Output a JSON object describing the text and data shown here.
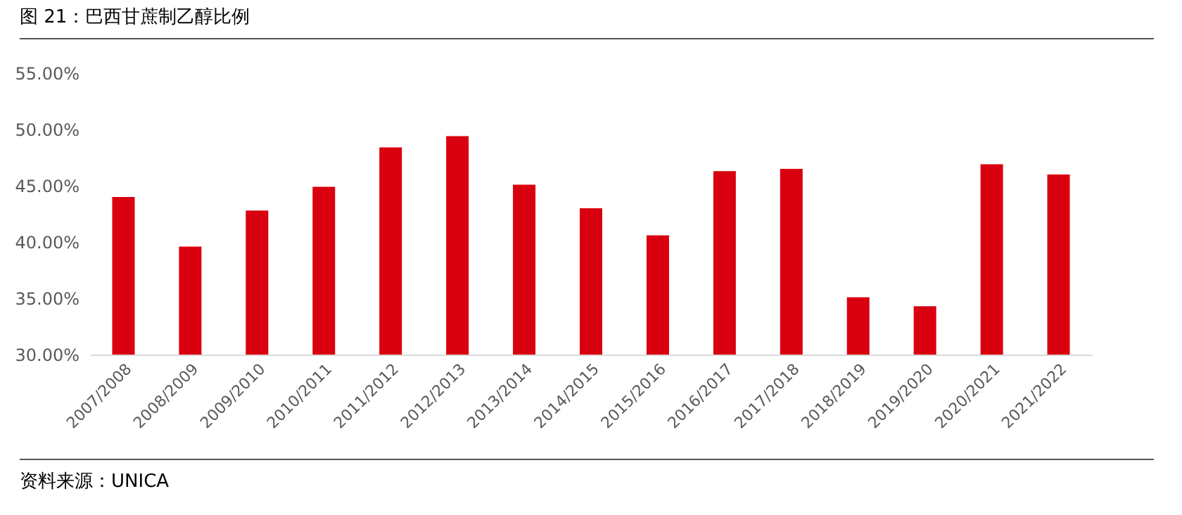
{
  "chart_data": {
    "type": "bar",
    "title": "图 21：巴西甘蔗制乙醇比例",
    "categories": [
      "2007/2008",
      "2008/2009",
      "2009/2010",
      "2010/2011",
      "2011/2012",
      "2012/2013",
      "2013/2014",
      "2014/2015",
      "2015/2016",
      "2016/2017",
      "2017/2018",
      "2018/2019",
      "2019/2020",
      "2020/2021",
      "2021/2022"
    ],
    "values": [
      44.0,
      39.6,
      42.8,
      44.9,
      48.4,
      49.4,
      45.1,
      43.0,
      40.6,
      46.3,
      46.5,
      35.1,
      34.3,
      46.9,
      46.0
    ],
    "color": "#d9000f",
    "ylim": [
      30,
      55
    ],
    "yticks": [
      {
        "value": 30,
        "label": "30.00%"
      },
      {
        "value": 35,
        "label": "35.00%"
      },
      {
        "value": 40,
        "label": "40.00%"
      },
      {
        "value": 45,
        "label": "45.00%"
      },
      {
        "value": 50,
        "label": "50.00%"
      },
      {
        "value": 55,
        "label": "55.00%"
      }
    ],
    "grid": false,
    "annotations": [
      "资料来源：UNICA"
    ]
  }
}
